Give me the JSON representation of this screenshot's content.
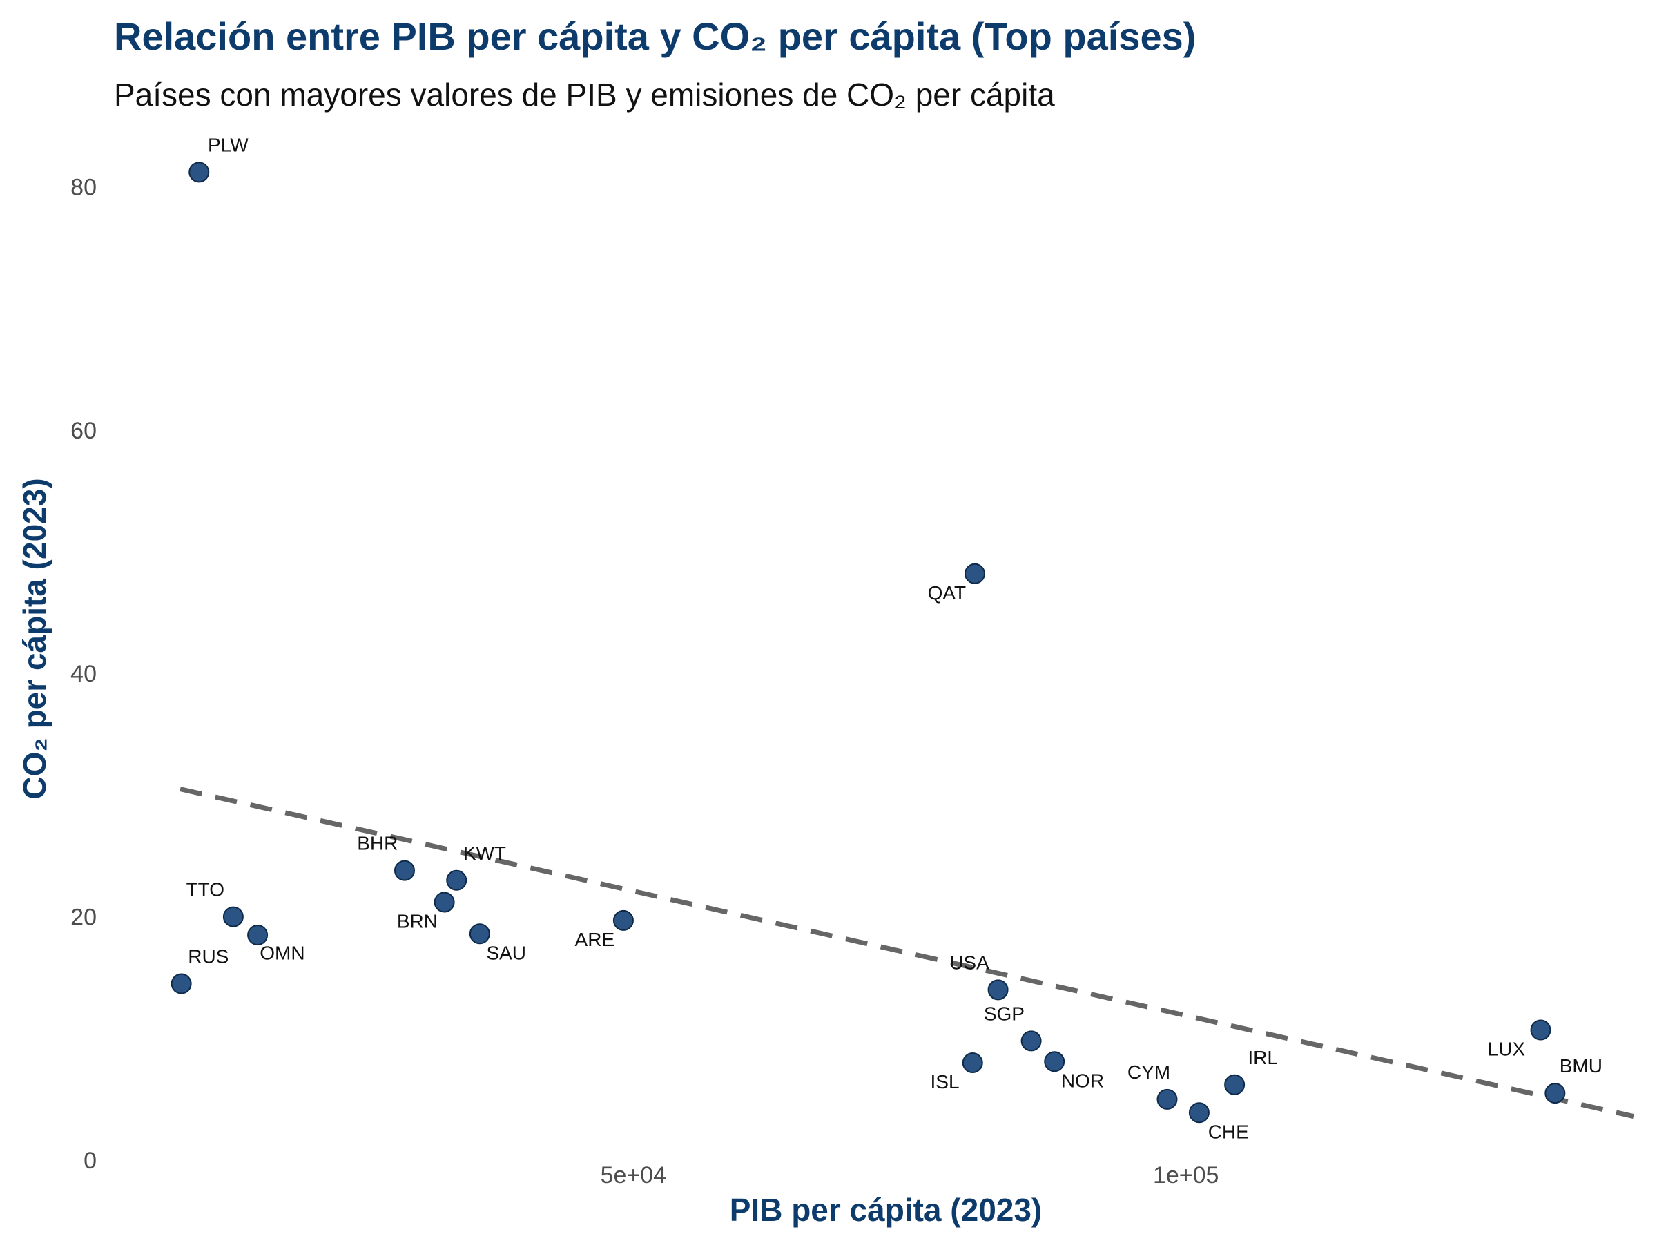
{
  "chart_data": {
    "type": "scatter",
    "title": "Relación entre PIB per cápita y CO₂ per cápita (Top países)",
    "subtitle": "Países con mayores valores de PIB y emisiones de CO₂ per cápita",
    "xlabel": "PIB per cápita (2023)",
    "ylabel": "CO₂ per cápita (2023)",
    "xlim": [
      3000,
      142000
    ],
    "ylim": [
      0,
      84
    ],
    "x_ticks": [
      {
        "value": 50000,
        "label": "5e+04"
      },
      {
        "value": 100000,
        "label": "1e+05"
      }
    ],
    "y_ticks": [
      {
        "value": 0,
        "label": "0"
      },
      {
        "value": 20,
        "label": "20"
      },
      {
        "value": 40,
        "label": "40"
      },
      {
        "value": 60,
        "label": "60"
      },
      {
        "value": 80,
        "label": "80"
      }
    ],
    "grid": false,
    "point_color": "#2b5384",
    "point_edge_color": "#0d2a4a",
    "trend_color": "#666666",
    "title_color": "#0d3b6b",
    "trend_line": {
      "type": "linear",
      "style": "dashed",
      "x": [
        9000,
        140500
      ],
      "y": [
        30.5,
        3.6
      ]
    },
    "points": [
      {
        "label": "PLW",
        "x": 10700,
        "y": 81.2,
        "anchor": "start",
        "dx": 0.8,
        "dy": 1.7
      },
      {
        "label": "TTO",
        "x": 13800,
        "y": 20.0,
        "anchor": "end",
        "dx": -0.8,
        "dy": 1.7
      },
      {
        "label": "OMN",
        "x": 16000,
        "y": 18.5,
        "anchor": "start",
        "dx": 0.2,
        "dy": -2.0
      },
      {
        "label": "RUS",
        "x": 9100,
        "y": 14.5,
        "anchor": "start",
        "dx": 0.6,
        "dy": 1.7
      },
      {
        "label": "BHR",
        "x": 29300,
        "y": 23.8,
        "anchor": "end",
        "dx": -0.6,
        "dy": 1.7
      },
      {
        "label": "KWT",
        "x": 34000,
        "y": 23.0,
        "anchor": "start",
        "dx": 0.6,
        "dy": 1.7
      },
      {
        "label": "BRN",
        "x": 32900,
        "y": 21.2,
        "anchor": "end",
        "dx": -0.6,
        "dy": -2.1
      },
      {
        "label": "SAU",
        "x": 36100,
        "y": 18.6,
        "anchor": "start",
        "dx": 0.6,
        "dy": -2.1
      },
      {
        "label": "ARE",
        "x": 49100,
        "y": 19.7,
        "anchor": "end",
        "dx": -0.8,
        "dy": -2.1
      },
      {
        "label": "QAT",
        "x": 80900,
        "y": 48.2,
        "anchor": "end",
        "dx": -0.8,
        "dy": -2.1
      },
      {
        "label": "USA",
        "x": 83000,
        "y": 14.0,
        "anchor": "end",
        "dx": -0.8,
        "dy": 1.7
      },
      {
        "label": "SGP",
        "x": 86000,
        "y": 9.8,
        "anchor": "end",
        "dx": -0.6,
        "dy": 1.7
      },
      {
        "label": "ISL",
        "x": 80700,
        "y": 8.0,
        "anchor": "end",
        "dx": -1.2,
        "dy": -2.1
      },
      {
        "label": "NOR",
        "x": 88100,
        "y": 8.1,
        "anchor": "start",
        "dx": 0.6,
        "dy": -2.1
      },
      {
        "label": "CYM",
        "x": 98300,
        "y": 5.0,
        "anchor": "start",
        "dx": -3.6,
        "dy": 1.7
      },
      {
        "label": "CHE",
        "x": 101200,
        "y": 3.9,
        "anchor": "start",
        "dx": 0.8,
        "dy": -2.1
      },
      {
        "label": "IRL",
        "x": 104400,
        "y": 6.2,
        "anchor": "start",
        "dx": 1.2,
        "dy": 1.7
      },
      {
        "label": "LUX",
        "x": 132100,
        "y": 10.7,
        "anchor": "end",
        "dx": -1.4,
        "dy": -2.1
      },
      {
        "label": "BMU",
        "x": 133400,
        "y": 5.5,
        "anchor": "start",
        "dx": 0.4,
        "dy": 1.7
      }
    ]
  }
}
